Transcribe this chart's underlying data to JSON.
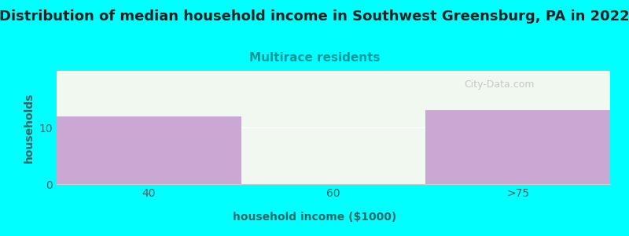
{
  "title": "Distribution of median household income in Southwest Greensburg, PA in 2022",
  "subtitle": "Multirace residents",
  "xlabel": "household income ($1000)",
  "ylabel": "households",
  "background_color": "#00FFFF",
  "plot_bg_color": "#f0f8f0",
  "bar_color": "#C9A8D4",
  "bar_categories": [
    "40",
    "60",
    ">75"
  ],
  "bar_values": [
    12,
    0,
    13
  ],
  "ylim": [
    0,
    20
  ],
  "yticks": [
    0,
    10
  ],
  "title_fontsize": 13,
  "subtitle_fontsize": 11,
  "subtitle_color": "#009999",
  "title_color": "#222222",
  "axis_label_fontsize": 10,
  "tick_fontsize": 10,
  "tick_color": "#336666",
  "watermark": "City-Data.com",
  "bin_edges": [
    0,
    1,
    2,
    3
  ],
  "xlim": [
    0,
    3
  ]
}
